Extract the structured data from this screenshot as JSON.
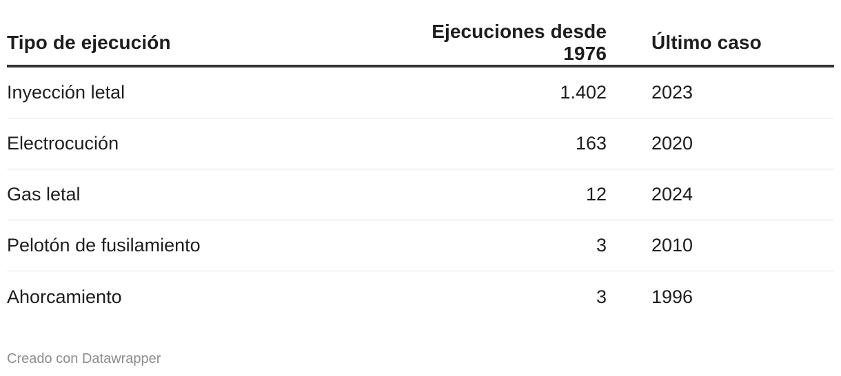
{
  "chart_data": {
    "type": "table",
    "columns": [
      "Tipo de ejecución",
      "Ejecuciones desde 1976",
      "Último caso"
    ],
    "rows": [
      {
        "type": "Inyección letal",
        "count": "1.402",
        "last": "2023"
      },
      {
        "type": "Electrocución",
        "count": "163",
        "last": "2020"
      },
      {
        "type": "Gas letal",
        "count": "12",
        "last": "2024"
      },
      {
        "type": "Pelotón de fusilamiento",
        "count": "3",
        "last": "2010"
      },
      {
        "type": "Ahorcamiento",
        "count": "3",
        "last": "1996"
      }
    ]
  },
  "footer": {
    "credit": "Creado con Datawrapper"
  }
}
